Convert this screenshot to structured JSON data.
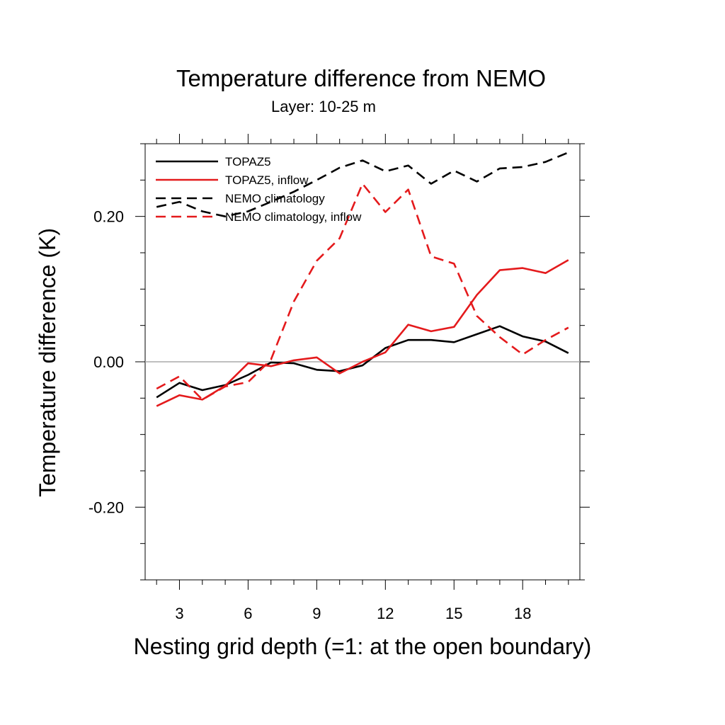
{
  "chart_data": {
    "type": "line",
    "title": "Temperature difference from NEMO",
    "subtitle": "Layer: 10-25 m",
    "xlabel": "Nesting grid depth (=1: at the open boundary)",
    "ylabel": "Temperature difference (K)",
    "xlim": [
      1.5,
      20.5
    ],
    "ylim": [
      -0.3,
      0.3
    ],
    "x_ticks": [
      3,
      6,
      9,
      12,
      15,
      18
    ],
    "x_tick_labels": [
      "3",
      "6",
      "9",
      "12",
      "15",
      "18"
    ],
    "y_ticks": [
      -0.2,
      0.0,
      0.2
    ],
    "y_tick_labels": [
      "-0.20",
      "0.00",
      "0.20"
    ],
    "zero_line": true,
    "grid": false,
    "legend_position": "top-left",
    "x": [
      2,
      3,
      4,
      5,
      6,
      7,
      8,
      9,
      10,
      11,
      12,
      13,
      14,
      15,
      16,
      17,
      18,
      19,
      20
    ],
    "series": [
      {
        "name": "TOPAZ5",
        "color": "#000000",
        "dash": "solid",
        "values": [
          -0.049,
          -0.029,
          -0.039,
          -0.032,
          -0.018,
          -0.001,
          -0.002,
          -0.011,
          -0.013,
          -0.005,
          0.019,
          0.03,
          0.03,
          0.027,
          0.038,
          0.049,
          0.035,
          0.028,
          0.012
        ]
      },
      {
        "name": "TOPAZ5, inflow",
        "color": "#e41a1c",
        "dash": "solid",
        "values": [
          -0.061,
          -0.046,
          -0.052,
          -0.033,
          -0.002,
          -0.006,
          0.002,
          0.006,
          -0.016,
          0.0,
          0.013,
          0.051,
          0.042,
          0.048,
          0.092,
          0.126,
          0.129,
          0.122,
          0.14
        ]
      },
      {
        "name": "NEMO climatology",
        "color": "#000000",
        "dash": "dashed",
        "values": [
          0.213,
          0.22,
          0.207,
          0.2,
          0.207,
          0.22,
          0.234,
          0.25,
          0.267,
          0.277,
          0.262,
          0.27,
          0.245,
          0.263,
          0.248,
          0.266,
          0.268,
          0.275,
          0.288
        ]
      },
      {
        "name": "NEMO climatology, inflow",
        "color": "#e41a1c",
        "dash": "dashed",
        "values": [
          -0.037,
          -0.02,
          -0.052,
          -0.034,
          -0.028,
          0.003,
          0.083,
          0.139,
          0.17,
          0.245,
          0.206,
          0.237,
          0.145,
          0.135,
          0.063,
          0.034,
          0.01,
          0.03,
          0.047
        ]
      }
    ]
  }
}
